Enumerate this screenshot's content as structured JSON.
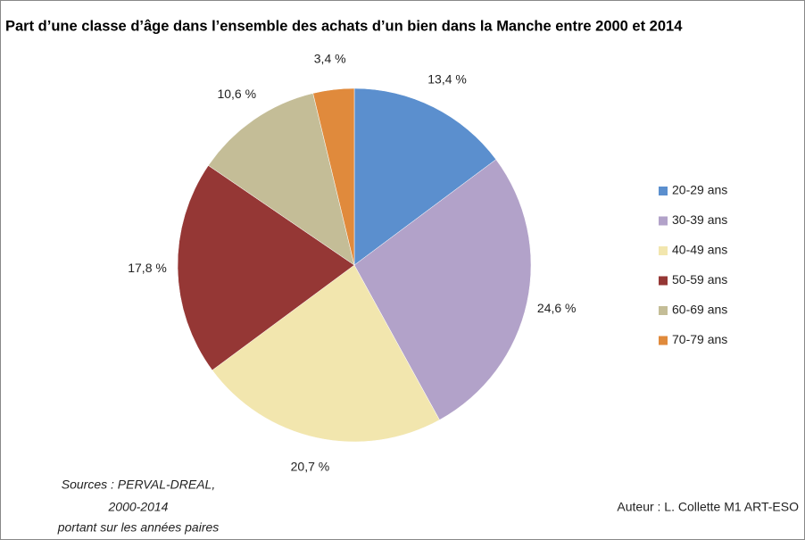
{
  "chart_data": {
    "type": "pie",
    "title": "Part d’une classe d’âge dans l’ensemble des achats d’un bien dans la Manche entre 2000 et 2014",
    "categories": [
      "20-29 ans",
      "30-39 ans",
      "40-49 ans",
      "50-59 ans",
      "60-69 ans",
      "70-79 ans"
    ],
    "values": [
      13.4,
      24.6,
      20.7,
      17.8,
      10.6,
      3.4
    ],
    "value_labels": [
      "13,4 %",
      "24,6 %",
      "20,7 %",
      "17,8 %",
      "10,6 %",
      "3,4 %"
    ],
    "colors": [
      "#5b8fce",
      "#b2a2c9",
      "#f2e6ae",
      "#953735",
      "#c4bd97",
      "#e08a3c"
    ],
    "legend": "right",
    "annotations": [
      "Sources : PERVAL-DREAL,",
      "2000-2014",
      "portant sur les années paires",
      "Auteur : L. Collette M1 ART-ESO"
    ]
  }
}
